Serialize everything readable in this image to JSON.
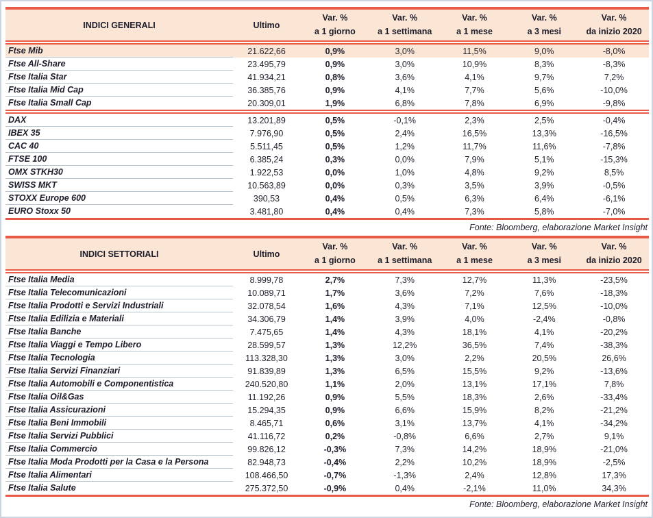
{
  "colors": {
    "accent_red": "#e85a45",
    "header_bg": "#fbe5d4",
    "highlight_bg": "#fbe5d4",
    "text": "#22222e",
    "row_separator": "#b9c3cd",
    "page_frame": "#ccd4e2"
  },
  "columns": {
    "ultimo": "Ultimo",
    "vars": [
      {
        "top": "Var. %",
        "bottom": "a 1 giorno"
      },
      {
        "top": "Var. %",
        "bottom": "a 1 settimana"
      },
      {
        "top": "Var. %",
        "bottom": "a 1 mese"
      },
      {
        "top": "Var. %",
        "bottom": "a 3 mesi"
      },
      {
        "top": "Var. %",
        "bottom": "da inizio 2020"
      }
    ]
  },
  "tables": [
    {
      "id": "generali",
      "title": "INDICI GENERALI",
      "fonte": "Fonte: Bloomberg, elaborazione Market Insight",
      "groups": [
        [
          {
            "name": "Ftse Mib",
            "ultimo": "21.622,66",
            "vars": [
              "0,9%",
              "3,0%",
              "11,5%",
              "9,0%",
              "-8,0%"
            ],
            "highlight": true
          },
          {
            "name": "Ftse All-Share",
            "ultimo": "23.495,79",
            "vars": [
              "0,9%",
              "3,0%",
              "10,9%",
              "8,3%",
              "-8,3%"
            ]
          },
          {
            "name": "Ftse Italia Star",
            "ultimo": "41.934,21",
            "vars": [
              "0,8%",
              "3,6%",
              "4,1%",
              "9,7%",
              "7,2%"
            ]
          },
          {
            "name": "Ftse Italia Mid Cap",
            "ultimo": "36.385,76",
            "vars": [
              "0,9%",
              "4,1%",
              "7,7%",
              "5,6%",
              "-10,0%"
            ]
          },
          {
            "name": "Ftse Italia Small Cap",
            "ultimo": "20.309,01",
            "vars": [
              "1,9%",
              "6,8%",
              "7,8%",
              "6,9%",
              "-9,8%"
            ]
          }
        ],
        [
          {
            "name": "DAX",
            "ultimo": "13.201,89",
            "vars": [
              "0,5%",
              "-0,1%",
              "2,3%",
              "2,5%",
              "-0,4%"
            ]
          },
          {
            "name": "IBEX 35",
            "ultimo": "7.976,90",
            "vars": [
              "0,5%",
              "2,4%",
              "16,5%",
              "13,3%",
              "-16,5%"
            ]
          },
          {
            "name": "CAC 40",
            "ultimo": "5.511,45",
            "vars": [
              "0,5%",
              "1,2%",
              "11,7%",
              "11,6%",
              "-7,8%"
            ]
          },
          {
            "name": "FTSE 100",
            "ultimo": "6.385,24",
            "vars": [
              "0,3%",
              "0,0%",
              "7,9%",
              "5,1%",
              "-15,3%"
            ]
          },
          {
            "name": "OMX STKH30",
            "ultimo": "1.922,53",
            "vars": [
              "0,0%",
              "1,0%",
              "4,8%",
              "9,2%",
              "8,5%"
            ]
          },
          {
            "name": "SWISS MKT",
            "ultimo": "10.563,89",
            "vars": [
              "0,0%",
              "0,3%",
              "3,5%",
              "3,9%",
              "-0,5%"
            ]
          },
          {
            "name": "STOXX Europe 600",
            "ultimo": "390,53",
            "vars": [
              "0,4%",
              "0,5%",
              "6,3%",
              "6,4%",
              "-6,1%"
            ]
          },
          {
            "name": "EURO Stoxx 50",
            "ultimo": "3.481,80",
            "vars": [
              "0,4%",
              "0,4%",
              "7,3%",
              "5,8%",
              "-7,0%"
            ]
          }
        ]
      ]
    },
    {
      "id": "settoriali",
      "title": "INDICI SETTORIALI",
      "fonte": "Fonte: Bloomberg, elaborazione Market Insight",
      "groups": [
        [
          {
            "name": "Ftse Italia Media",
            "ultimo": "8.999,78",
            "vars": [
              "2,7%",
              "7,3%",
              "12,7%",
              "11,3%",
              "-23,5%"
            ]
          },
          {
            "name": "Ftse Italia Telecomunicazioni",
            "ultimo": "10.089,71",
            "vars": [
              "1,7%",
              "3,6%",
              "7,2%",
              "7,6%",
              "-18,3%"
            ]
          },
          {
            "name": "Ftse Italia Prodotti e Servizi Industriali",
            "ultimo": "32.078,54",
            "vars": [
              "1,6%",
              "4,3%",
              "7,1%",
              "12,5%",
              "-10,0%"
            ]
          },
          {
            "name": "Ftse Italia Edilizia e Materiali",
            "ultimo": "34.306,79",
            "vars": [
              "1,4%",
              "3,9%",
              "4,0%",
              "-2,4%",
              "-0,8%"
            ]
          },
          {
            "name": "Ftse Italia Banche",
            "ultimo": "7.475,65",
            "vars": [
              "1,4%",
              "4,3%",
              "18,1%",
              "4,1%",
              "-20,2%"
            ]
          },
          {
            "name": "Ftse Italia Viaggi e Tempo Libero",
            "ultimo": "28.599,57",
            "vars": [
              "1,3%",
              "12,2%",
              "36,5%",
              "7,4%",
              "-38,3%"
            ]
          },
          {
            "name": "Ftse Italia Tecnologia",
            "ultimo": "113.328,30",
            "vars": [
              "1,3%",
              "3,0%",
              "2,2%",
              "20,5%",
              "26,6%"
            ]
          },
          {
            "name": "Ftse Italia Servizi Finanziari",
            "ultimo": "91.839,89",
            "vars": [
              "1,3%",
              "6,5%",
              "15,5%",
              "9,2%",
              "-13,6%"
            ]
          },
          {
            "name": "Ftse Italia Automobili e Componentistica",
            "ultimo": "240.520,80",
            "vars": [
              "1,1%",
              "2,0%",
              "13,1%",
              "17,1%",
              "7,8%"
            ]
          },
          {
            "name": "Ftse Italia Oil&Gas",
            "ultimo": "11.192,26",
            "vars": [
              "0,9%",
              "5,5%",
              "18,3%",
              "2,6%",
              "-33,4%"
            ]
          },
          {
            "name": "Ftse Italia Assicurazioni",
            "ultimo": "15.294,35",
            "vars": [
              "0,9%",
              "6,6%",
              "15,9%",
              "8,2%",
              "-21,2%"
            ]
          },
          {
            "name": "Ftse Italia Beni Immobili",
            "ultimo": "8.465,71",
            "vars": [
              "0,6%",
              "3,1%",
              "13,7%",
              "4,1%",
              "-34,2%"
            ]
          },
          {
            "name": "Ftse Italia Servizi Pubblici",
            "ultimo": "41.116,72",
            "vars": [
              "0,2%",
              "-0,8%",
              "6,6%",
              "2,7%",
              "9,1%"
            ]
          },
          {
            "name": "Ftse Italia Commercio",
            "ultimo": "99.826,12",
            "vars": [
              "-0,3%",
              "7,3%",
              "14,2%",
              "18,9%",
              "-21,0%"
            ]
          },
          {
            "name": "Ftse Italia Moda Prodotti per la Casa e la Persona",
            "ultimo": "82.948,73",
            "vars": [
              "-0,4%",
              "2,2%",
              "10,2%",
              "18,9%",
              "-2,5%"
            ]
          },
          {
            "name": "Ftse Italia Alimentari",
            "ultimo": "108.466,50",
            "vars": [
              "-0,7%",
              "-1,3%",
              "2,4%",
              "12,8%",
              "17,3%"
            ]
          },
          {
            "name": "Ftse Italia Salute",
            "ultimo": "275.372,50",
            "vars": [
              "-0,9%",
              "0,4%",
              "-2,1%",
              "11,0%",
              "34,3%"
            ]
          }
        ]
      ]
    }
  ]
}
